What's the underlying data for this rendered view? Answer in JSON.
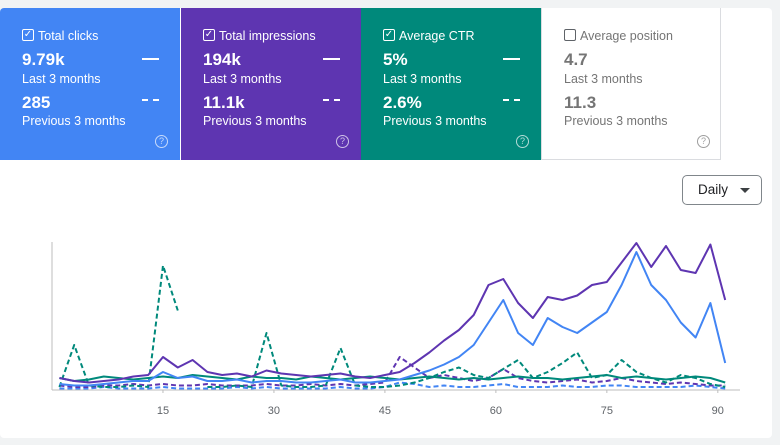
{
  "cards": [
    {
      "label": "Total clicks",
      "value": "9.79k",
      "period": "Last 3 months",
      "prev_value": "285",
      "prev_period": "Previous 3 months"
    },
    {
      "label": "Total impressions",
      "value": "194k",
      "period": "Last 3 months",
      "prev_value": "11.1k",
      "prev_period": "Previous 3 months"
    },
    {
      "label": "Average CTR",
      "value": "5%",
      "period": "Last 3 months",
      "prev_value": "2.6%",
      "prev_period": "Previous 3 months"
    },
    {
      "label": "Average position",
      "value": "4.7",
      "period": "Last 3 months",
      "prev_value": "11.3",
      "prev_period": "Previous 3 months"
    }
  ],
  "granularity": "Daily",
  "chart_data": {
    "type": "line",
    "x": [
      1,
      3,
      5,
      7,
      9,
      11,
      13,
      15,
      17,
      19,
      21,
      23,
      25,
      27,
      29,
      31,
      33,
      35,
      37,
      39,
      41,
      43,
      45,
      47,
      49,
      51,
      53,
      55,
      57,
      59,
      61,
      63,
      65,
      67,
      69,
      71,
      73,
      75,
      77,
      79,
      81,
      83,
      85,
      87,
      89,
      91
    ],
    "xlim": [
      0,
      93
    ],
    "xticks": [
      15,
      30,
      45,
      60,
      75,
      90
    ],
    "ylim": [
      0,
      100
    ],
    "series": [
      {
        "color": "#4285f4",
        "dash": true,
        "values": [
          1,
          1,
          1,
          2,
          1,
          1,
          1,
          2,
          1,
          1,
          1,
          1,
          2,
          1,
          2,
          1,
          1,
          1,
          1,
          2,
          1,
          1,
          2,
          5,
          4,
          2,
          3,
          2,
          2,
          3,
          4,
          2,
          2,
          2,
          3,
          2,
          2,
          3,
          3,
          2,
          2,
          2,
          2,
          3,
          2,
          1
        ]
      },
      {
        "color": "#5e35b1",
        "dash": true,
        "values": [
          3,
          2,
          2,
          3,
          3,
          4,
          3,
          4,
          3,
          3,
          4,
          3,
          3,
          3,
          4,
          3,
          3,
          4,
          3,
          4,
          3,
          4,
          5,
          22,
          15,
          8,
          10,
          8,
          6,
          8,
          14,
          8,
          6,
          5,
          6,
          7,
          5,
          6,
          8,
          6,
          5,
          4,
          5,
          4,
          3,
          3
        ]
      },
      {
        "color": "#00897b",
        "dash": true,
        "values": [
          2,
          30,
          3,
          2,
          2,
          3,
          2,
          83,
          53,
          null,
          2,
          2,
          3,
          2,
          38,
          3,
          2,
          2,
          3,
          28,
          3,
          2,
          2,
          3,
          5,
          8,
          12,
          15,
          10,
          8,
          14,
          20,
          8,
          12,
          18,
          25,
          8,
          10,
          20,
          12,
          8,
          5,
          10,
          8,
          4,
          2
        ]
      },
      {
        "color": "#00897b",
        "dash": false,
        "values": [
          8,
          6,
          7,
          9,
          8,
          7,
          8,
          9,
          8,
          10,
          9,
          8,
          7,
          9,
          8,
          8,
          7,
          9,
          8,
          7,
          8,
          9,
          8,
          7,
          8,
          9,
          8,
          7,
          8,
          7,
          8,
          9,
          8,
          8,
          7,
          8,
          9,
          10,
          8,
          9,
          8,
          7,
          8,
          9,
          8,
          5
        ]
      },
      {
        "color": "#5e35b1",
        "dash": false,
        "values": [
          8,
          6,
          5,
          6,
          7,
          9,
          10,
          22,
          15,
          20,
          12,
          10,
          11,
          9,
          13,
          11,
          10,
          9,
          10,
          11,
          9,
          8,
          10,
          12,
          18,
          25,
          33,
          40,
          50,
          70,
          74,
          58,
          48,
          62,
          60,
          63,
          70,
          72,
          85,
          98,
          82,
          96,
          80,
          78,
          97,
          60
        ]
      },
      {
        "color": "#4285f4",
        "dash": false,
        "values": [
          4,
          3,
          3,
          4,
          5,
          6,
          6,
          12,
          8,
          9,
          6,
          6,
          7,
          5,
          6,
          6,
          5,
          5,
          6,
          7,
          5,
          5,
          6,
          7,
          10,
          13,
          17,
          22,
          30,
          45,
          60,
          38,
          30,
          48,
          42,
          38,
          45,
          52,
          70,
          92,
          70,
          60,
          45,
          35,
          58,
          18
        ]
      }
    ]
  }
}
